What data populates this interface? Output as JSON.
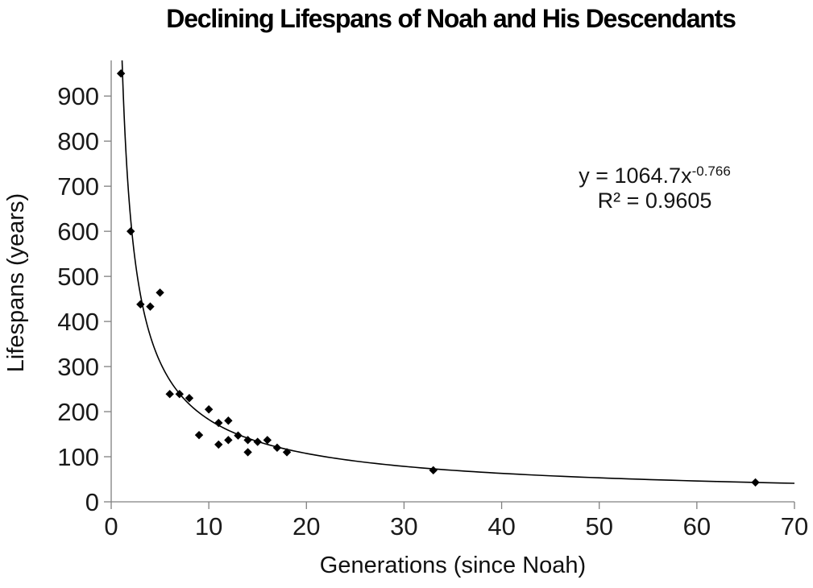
{
  "page": {
    "background": "#ffffff",
    "text_color": "#1a1a1a",
    "axis_color": "#808080"
  },
  "chart_data": {
    "type": "scatter",
    "title": "Declining Lifespans of Noah and His Descendants",
    "xlabel": "Generations (since Noah)",
    "ylabel": "Lifespans (years)",
    "xlim": [
      0,
      70
    ],
    "ylim": [
      0,
      979
    ],
    "x_ticks": [
      0,
      10,
      20,
      30,
      40,
      50,
      60,
      70
    ],
    "y_ticks": [
      0,
      100,
      200,
      300,
      400,
      500,
      600,
      700,
      800,
      900
    ],
    "grid": false,
    "legend_position": "none",
    "marker": "diamond",
    "marker_color": "#000000",
    "points": [
      {
        "x": 1,
        "y": 950
      },
      {
        "x": 2,
        "y": 600
      },
      {
        "x": 3,
        "y": 438
      },
      {
        "x": 4,
        "y": 433
      },
      {
        "x": 5,
        "y": 464
      },
      {
        "x": 6,
        "y": 239
      },
      {
        "x": 7,
        "y": 239
      },
      {
        "x": 8,
        "y": 230
      },
      {
        "x": 9,
        "y": 148
      },
      {
        "x": 10,
        "y": 205
      },
      {
        "x": 11,
        "y": 175
      },
      {
        "x": 11,
        "y": 127
      },
      {
        "x": 12,
        "y": 180
      },
      {
        "x": 12,
        "y": 137
      },
      {
        "x": 13,
        "y": 147
      },
      {
        "x": 14,
        "y": 137
      },
      {
        "x": 14,
        "y": 110
      },
      {
        "x": 15,
        "y": 133
      },
      {
        "x": 16,
        "y": 137
      },
      {
        "x": 17,
        "y": 120
      },
      {
        "x": 18,
        "y": 110
      },
      {
        "x": 33,
        "y": 70
      },
      {
        "x": 66,
        "y": 43
      }
    ],
    "trendline": {
      "type": "power",
      "a": 1064.7,
      "b": -0.766,
      "color": "#000000",
      "equation_base": "y = 1064.7x",
      "equation_exponent": "-0.766",
      "r2": "R² = 0.9605"
    }
  }
}
